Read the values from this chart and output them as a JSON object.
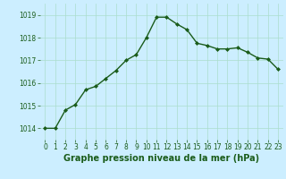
{
  "x": [
    0,
    1,
    2,
    3,
    4,
    5,
    6,
    7,
    8,
    9,
    10,
    11,
    12,
    13,
    14,
    15,
    16,
    17,
    18,
    19,
    20,
    21,
    22,
    23
  ],
  "y": [
    1014.0,
    1014.0,
    1014.8,
    1015.05,
    1015.7,
    1015.85,
    1016.2,
    1016.55,
    1017.0,
    1017.25,
    1018.0,
    1018.9,
    1018.9,
    1018.6,
    1018.35,
    1017.75,
    1017.65,
    1017.5,
    1017.5,
    1017.55,
    1017.35,
    1017.1,
    1017.05,
    1016.6
  ],
  "line_color": "#1a5c1a",
  "marker": "D",
  "marker_size": 2.0,
  "bg_color": "#cceeff",
  "grid_color": "#aaddcc",
  "xlabel": "Graphe pression niveau de la mer (hPa)",
  "xlabel_color": "#1a5c1a",
  "xlabel_fontsize": 7.0,
  "tick_color": "#1a5c1a",
  "ylim": [
    1013.5,
    1019.5
  ],
  "yticks": [
    1014,
    1015,
    1016,
    1017,
    1018,
    1019
  ],
  "xticks": [
    0,
    1,
    2,
    3,
    4,
    5,
    6,
    7,
    8,
    9,
    10,
    11,
    12,
    13,
    14,
    15,
    16,
    17,
    18,
    19,
    20,
    21,
    22,
    23
  ],
  "tick_fontsize": 5.5,
  "line_width": 1.0
}
